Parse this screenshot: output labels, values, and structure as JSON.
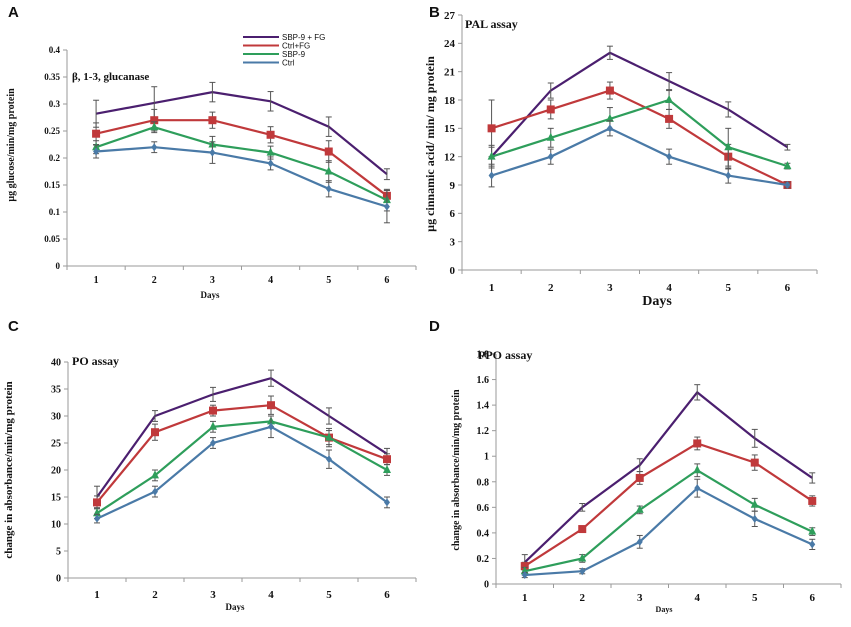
{
  "colors": {
    "SBP-9 + FG": "#4b1f6f",
    "Ctrl+FG": "#c0393b",
    "SBP-9": "#2e9e5b",
    "Ctrl": "#4a7aa7",
    "axis": "#9a9a9a"
  },
  "legend": [
    "SBP-9 + FG",
    "Ctrl+FG",
    "SBP-9",
    "Ctrl"
  ],
  "chart_data": [
    {
      "id": "A",
      "letter": "A",
      "type": "line",
      "title": "β, 1-3, glucanase",
      "xlabel": "Days",
      "ylabel": "µg glucose/min/mg protein",
      "categories": [
        "1",
        "2",
        "3",
        "4",
        "5",
        "6"
      ],
      "ylim": [
        0,
        0.4
      ],
      "yticks": [
        0,
        0.05,
        0.1,
        0.15,
        0.2,
        0.25,
        0.3,
        0.35,
        0.4
      ],
      "ytick_labels": [
        "0",
        "0.05",
        "0.1",
        "0.15",
        "0.2",
        "0.25",
        "0.3",
        "0.35",
        "0.4"
      ],
      "legend_visible": true,
      "series": [
        {
          "name": "SBP-9 + FG",
          "values": [
            0.282,
            0.302,
            0.322,
            0.305,
            0.258,
            0.17
          ],
          "errors": [
            0.025,
            0.03,
            0.018,
            0.018,
            0.018,
            0.01
          ],
          "marker": "none"
        },
        {
          "name": "Ctrl+FG",
          "values": [
            0.245,
            0.27,
            0.27,
            0.243,
            0.212,
            0.13
          ],
          "errors": [
            0.02,
            0.02,
            0.015,
            0.015,
            0.02,
            0.01
          ],
          "marker": "square"
        },
        {
          "name": "SBP-9",
          "values": [
            0.22,
            0.257,
            0.225,
            0.21,
            0.175,
            0.122
          ],
          "errors": [
            0.012,
            0.01,
            0.015,
            0.012,
            0.02,
            0.02
          ],
          "marker": "triangle"
        },
        {
          "name": "Ctrl",
          "values": [
            0.212,
            0.22,
            0.21,
            0.19,
            0.143,
            0.11
          ],
          "errors": [
            0.012,
            0.01,
            0.02,
            0.012,
            0.015,
            0.03
          ],
          "marker": "diamond"
        }
      ]
    },
    {
      "id": "B",
      "letter": "B",
      "type": "line",
      "title": "PAL assay",
      "xlabel": "Days",
      "ylabel": "µg cinnamic acid/ min/ mg protein",
      "categories": [
        "1",
        "2",
        "3",
        "4",
        "5",
        "6"
      ],
      "ylim": [
        0,
        27
      ],
      "yticks": [
        0,
        3,
        6,
        9,
        12,
        15,
        18,
        21,
        24,
        27
      ],
      "ytick_labels": [
        "0",
        "3",
        "6",
        "9",
        "12",
        "15",
        "18",
        "21",
        "24",
        "27"
      ],
      "legend_visible": false,
      "series": [
        {
          "name": "SBP-9 + FG",
          "values": [
            12,
            19,
            23,
            20,
            17,
            13
          ],
          "errors": [
            1.2,
            0.8,
            0.7,
            0.9,
            0.8,
            0.3
          ],
          "marker": "none"
        },
        {
          "name": "Ctrl+FG",
          "values": [
            15,
            17,
            19,
            16,
            12,
            9
          ],
          "errors": [
            3,
            1,
            0.9,
            1,
            1.3,
            0.3
          ],
          "marker": "square"
        },
        {
          "name": "SBP-9",
          "values": [
            12,
            14,
            16,
            18,
            13,
            11
          ],
          "errors": [
            1,
            1,
            1.2,
            1,
            2,
            0.3
          ],
          "marker": "triangle"
        },
        {
          "name": "Ctrl",
          "values": [
            10,
            12,
            15,
            12,
            10,
            9
          ],
          "errors": [
            1.2,
            0.8,
            0.8,
            0.8,
            0.8,
            0.3
          ],
          "marker": "diamond"
        }
      ]
    },
    {
      "id": "C",
      "letter": "C",
      "type": "line",
      "title": "PO assay",
      "xlabel": "Days",
      "ylabel": "change in absorbance/min/mg protein",
      "categories": [
        "1",
        "2",
        "3",
        "4",
        "5",
        "6"
      ],
      "ylim": [
        0,
        40
      ],
      "yticks": [
        0,
        5,
        10,
        15,
        20,
        25,
        30,
        35,
        40
      ],
      "ytick_labels": [
        "0",
        "5",
        "10",
        "15",
        "20",
        "25",
        "30",
        "35",
        "40"
      ],
      "legend_visible": false,
      "series": [
        {
          "name": "SBP-9 + FG",
          "values": [
            15,
            30,
            34,
            37,
            30,
            23
          ],
          "errors": [
            2,
            1,
            1.3,
            1.5,
            1.5,
            1
          ],
          "marker": "none"
        },
        {
          "name": "Ctrl+FG",
          "values": [
            14,
            27,
            31,
            32,
            26,
            22
          ],
          "errors": [
            1.2,
            1.5,
            1,
            1.7,
            1.7,
            1
          ],
          "marker": "square"
        },
        {
          "name": "SBP-9",
          "values": [
            12,
            19,
            28,
            29,
            26,
            20
          ],
          "errors": [
            1,
            1,
            1,
            1,
            1.3,
            1
          ],
          "marker": "triangle"
        },
        {
          "name": "Ctrl",
          "values": [
            11,
            16,
            25,
            28,
            22,
            14
          ],
          "errors": [
            0.8,
            1,
            1,
            2,
            1.7,
            1
          ],
          "marker": "diamond"
        }
      ]
    },
    {
      "id": "D",
      "letter": "D",
      "type": "line",
      "title": "PPO assay",
      "xlabel": "Days",
      "ylabel": "change in absorbance/min/mg protein",
      "categories": [
        "1",
        "2",
        "3",
        "4",
        "5",
        "6"
      ],
      "ylim": [
        0,
        1.8
      ],
      "yticks": [
        0,
        0.2,
        0.4,
        0.6,
        0.8,
        1,
        1.2,
        1.4,
        1.6,
        1.8
      ],
      "ytick_labels": [
        "0",
        "0.2",
        "0.4",
        "0.6",
        "0.8",
        "1",
        "1.2",
        "1.4",
        "1.6",
        "1.8"
      ],
      "legend_visible": false,
      "series": [
        {
          "name": "SBP-9 + FG",
          "values": [
            0.17,
            0.6,
            0.93,
            1.5,
            1.14,
            0.83
          ],
          "errors": [
            0.06,
            0.03,
            0.05,
            0.06,
            0.07,
            0.04
          ],
          "marker": "none"
        },
        {
          "name": "Ctrl+FG",
          "values": [
            0.14,
            0.43,
            0.83,
            1.1,
            0.95,
            0.65
          ],
          "errors": [
            0.03,
            0.02,
            0.05,
            0.05,
            0.06,
            0.04
          ],
          "marker": "square"
        },
        {
          "name": "SBP-9",
          "values": [
            0.1,
            0.2,
            0.58,
            0.89,
            0.62,
            0.41
          ],
          "errors": [
            0.03,
            0.03,
            0.03,
            0.05,
            0.05,
            0.03
          ],
          "marker": "triangle"
        },
        {
          "name": "Ctrl",
          "values": [
            0.07,
            0.1,
            0.33,
            0.75,
            0.51,
            0.31
          ],
          "errors": [
            0.02,
            0.02,
            0.05,
            0.07,
            0.06,
            0.04
          ],
          "marker": "diamond"
        }
      ]
    }
  ]
}
